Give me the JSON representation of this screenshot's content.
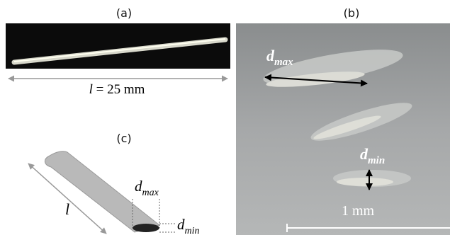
{
  "panels": [
    {
      "label": "(a)",
      "caption": {
        "symbol": "l",
        "text": "= 25 mm"
      }
    },
    {
      "label": "(b)",
      "annotations": [
        {
          "base": "d",
          "sub": "max"
        },
        {
          "base": "d",
          "sub": "min"
        }
      ],
      "scale_bar": "1 mm"
    },
    {
      "label": "(c)",
      "length": "l",
      "width": {
        "base": "d",
        "sub": "max"
      },
      "thickness": {
        "base": "d",
        "sub": "min"
      }
    }
  ]
}
